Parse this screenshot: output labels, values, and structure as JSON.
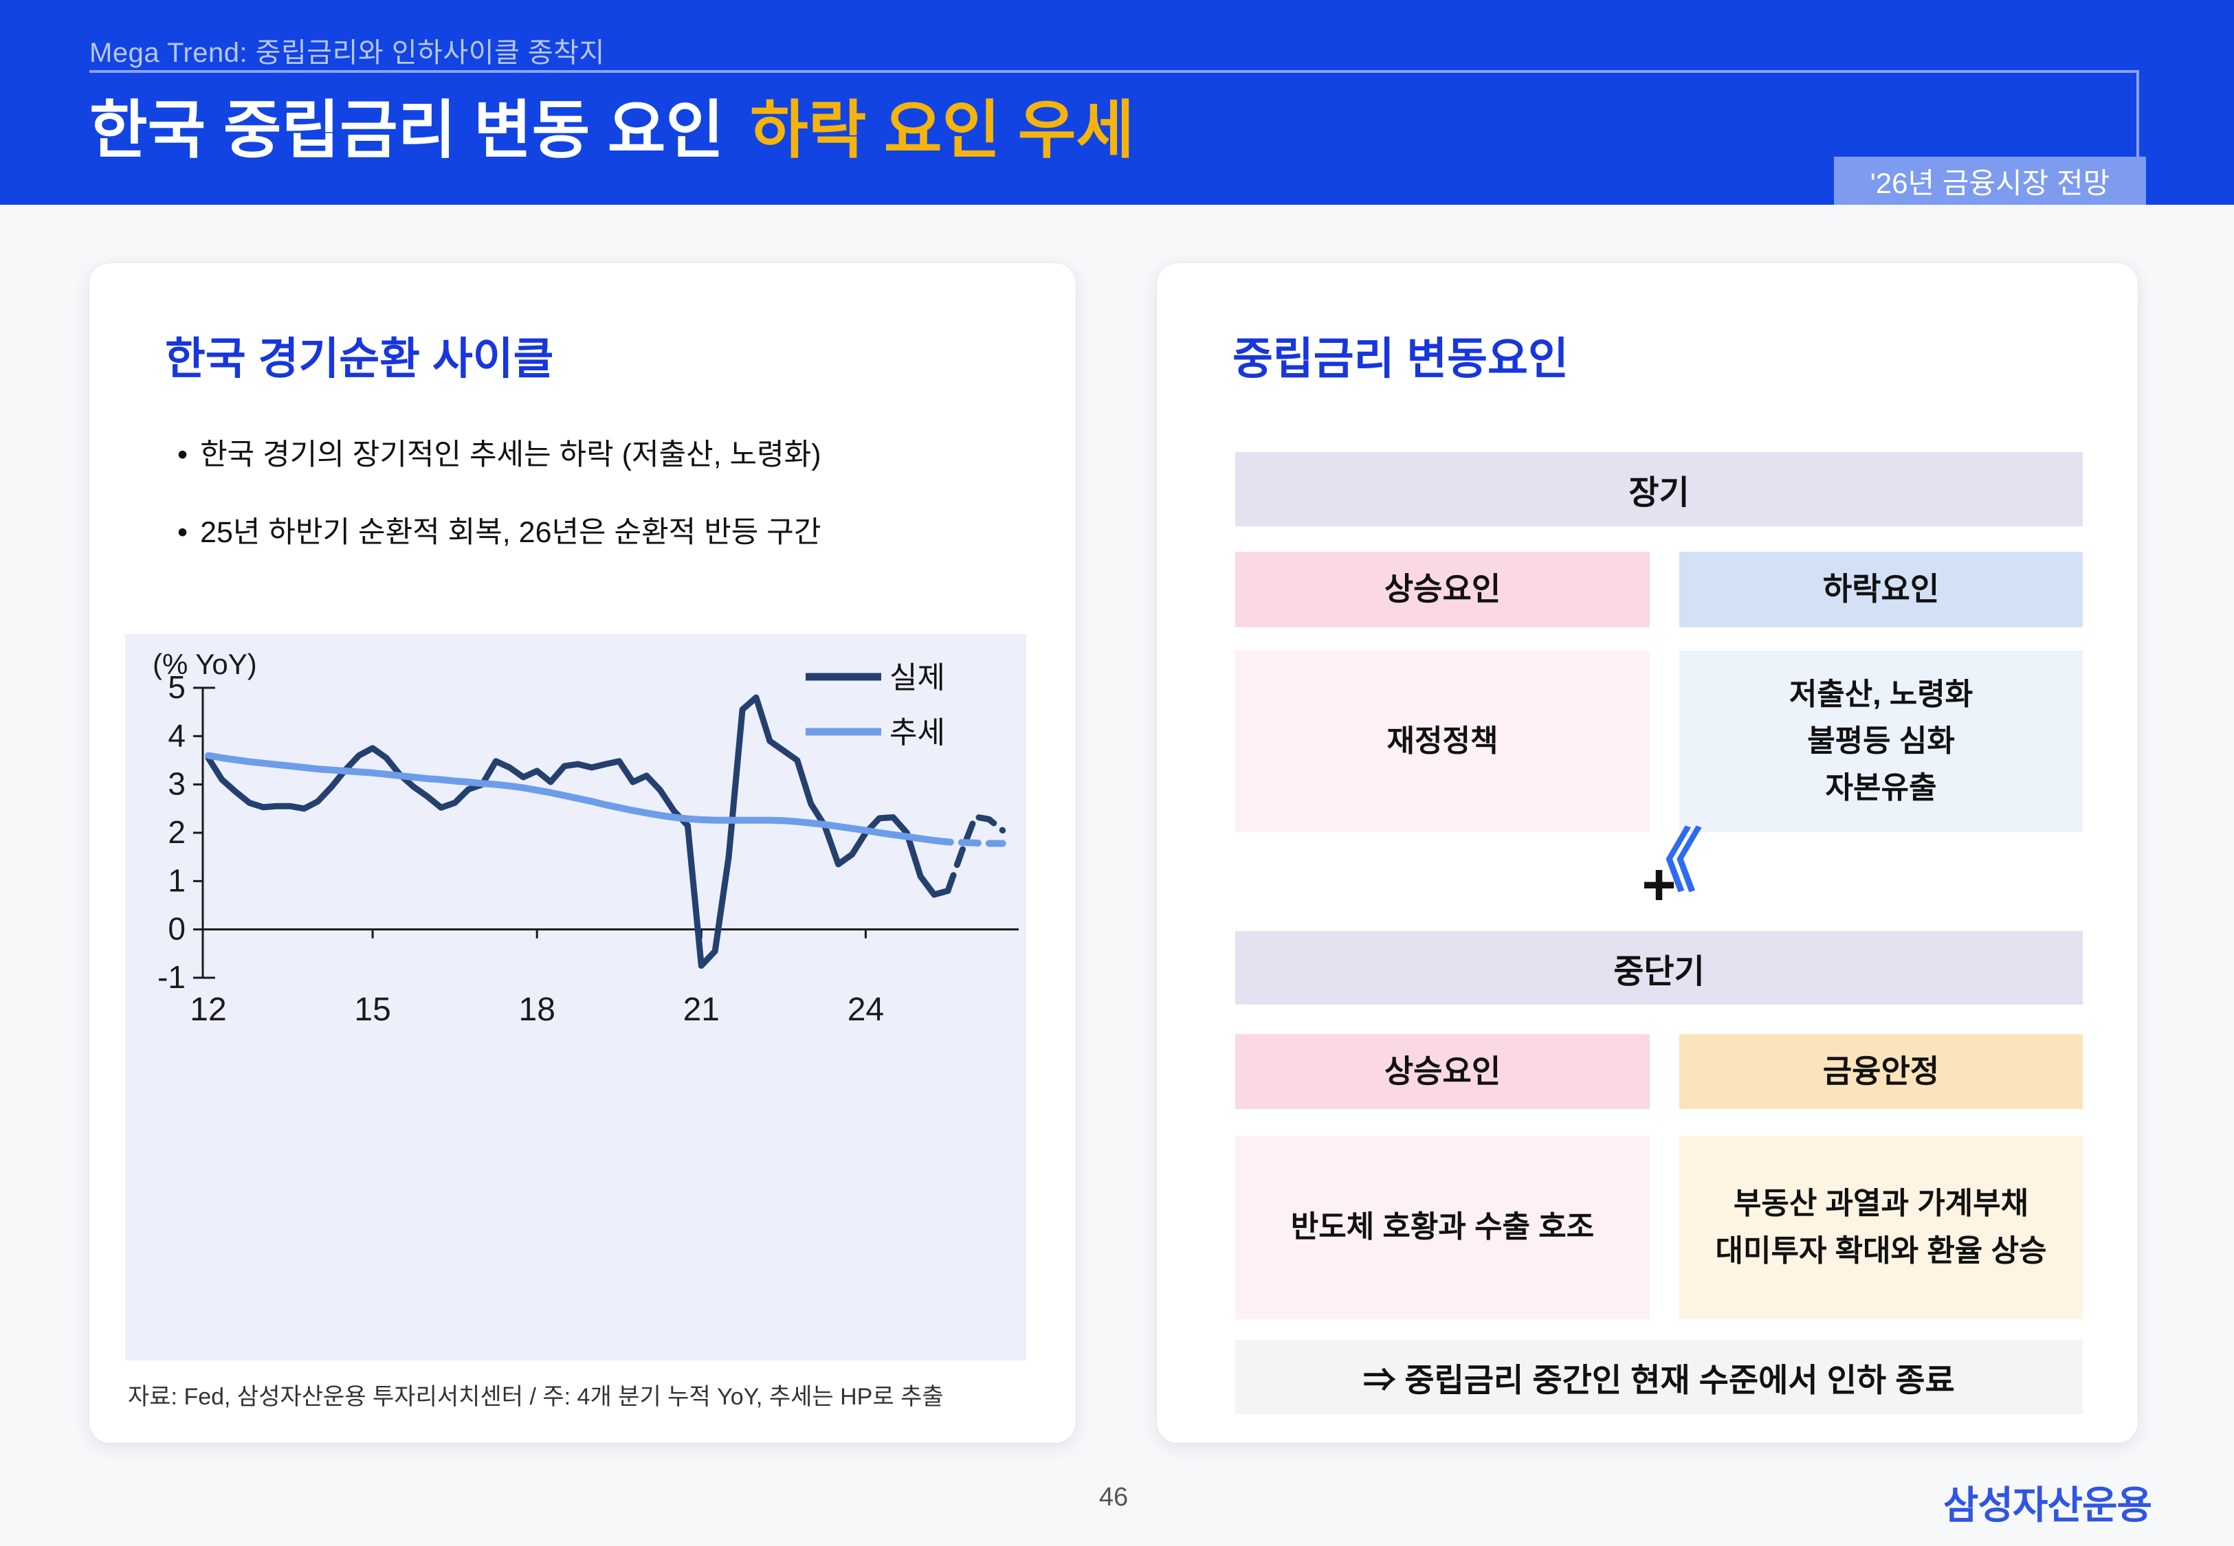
{
  "header": {
    "eyebrow": "Mega Trend: 중립금리와 인하사이클 종착지",
    "title": "한국 중립금리 변동 요인",
    "title_highlight": "하락 요인 우세",
    "badge": "'26년 금융시장 전망"
  },
  "left_card": {
    "title": "한국 경기순환 사이클",
    "bullets": [
      "한국 경기의 장기적인 추세는 하락 (저출산, 노령화)",
      "25년 하반기 순환적 회복, 26년은 순환적 반등 구간"
    ],
    "source": "자료: Fed, 삼성자산운용 투자리서치센터 / 주: 4개 분기 누적 YoY, 추세는 HP로 추출"
  },
  "right_card": {
    "title": "중립금리 변동요인",
    "long_term": {
      "header": "장기",
      "up_label": "상승요인",
      "down_label": "하락요인",
      "comparison_symbol": "《",
      "up_content": "재정정책",
      "down_content": "저출산, 노령화\n불평등 심화\n자본유출"
    },
    "plus_symbol": "+",
    "mid_term": {
      "header": "중단기",
      "up_label": "상승요인",
      "stability_label": "금융안정",
      "up_content": "반도체 호황과 수출 호조",
      "stability_content": "부동산 과열과 가계부채\n대미투자 확대와 환율 상승"
    },
    "conclusion": "⇒ 중립금리 중간인 현재 수준에서 인하 종료"
  },
  "footer": {
    "page_number": "46",
    "logo": "삼성자산운용"
  },
  "colors": {
    "page_bg": "#f7f8fa",
    "header_bg": "#1144e3",
    "header_eyebrow": "#b9c6f4",
    "header_rule": "#8ca3ee",
    "title_text": "#ffffff",
    "title_highlight": "#f6b40a",
    "badge_bg": "#7d9bef",
    "badge_text": "#ffffff",
    "card_bg": "#ffffff",
    "card_title": "#1737dc",
    "body_text": "#111111",
    "chart_bg": "#edf0fa",
    "actual_line": "#24406f",
    "trend_line": "#6d9de9",
    "band_lavender": "#e5e1f1",
    "band_pink": "#fbd9e2",
    "band_blue": "#d3e1f7",
    "cell_pink": "#fdf1f4",
    "cell_blue": "#edf3fb",
    "band_orange": "#fbe3bb",
    "cell_orange": "#fdf4e3",
    "row_gray": "#f4f4f6",
    "guillemet": "#2e6bf0",
    "logo_blue": "#2f55e2",
    "footer_text": "#555555",
    "source_text": "#333333",
    "axis": "#1a1a1a"
  },
  "chart_data": {
    "type": "line",
    "unit_label": "(% YoY)",
    "x_start": 12,
    "x_step": 0.25,
    "x_ticks": [
      12,
      15,
      18,
      21,
      24
    ],
    "xlim": [
      12,
      26.5
    ],
    "ylim": [
      -1,
      5
    ],
    "y_ticks": [
      -1,
      0,
      1,
      2,
      3,
      4,
      5
    ],
    "grid": false,
    "legend_position": "top-right",
    "series": [
      {
        "name": "실제",
        "color": "#24406f",
        "width": 9,
        "dashed_from_index": 54,
        "values": [
          3.55,
          3.1,
          2.85,
          2.62,
          2.53,
          2.55,
          2.55,
          2.5,
          2.65,
          2.95,
          3.3,
          3.6,
          3.75,
          3.55,
          3.2,
          2.95,
          2.75,
          2.52,
          2.62,
          2.9,
          3.0,
          3.48,
          3.35,
          3.15,
          3.28,
          3.05,
          3.38,
          3.42,
          3.35,
          3.42,
          3.48,
          3.05,
          3.18,
          2.88,
          2.45,
          2.15,
          -0.75,
          -0.45,
          1.5,
          4.55,
          4.8,
          3.9,
          3.7,
          3.5,
          2.6,
          2.15,
          1.35,
          1.55,
          2.0,
          2.3,
          2.32,
          2.0,
          1.1,
          0.72,
          0.8,
          1.6,
          2.33,
          2.28,
          2.05
        ]
      },
      {
        "name": "추세",
        "color": "#6d9de9",
        "width": 10,
        "dashed_from_index": 53,
        "values": [
          3.6,
          3.55,
          3.51,
          3.47,
          3.44,
          3.41,
          3.38,
          3.35,
          3.32,
          3.3,
          3.28,
          3.26,
          3.24,
          3.21,
          3.18,
          3.15,
          3.12,
          3.1,
          3.07,
          3.05,
          3.02,
          3.0,
          2.97,
          2.93,
          2.88,
          2.83,
          2.77,
          2.71,
          2.65,
          2.58,
          2.52,
          2.46,
          2.41,
          2.36,
          2.32,
          2.29,
          2.27,
          2.26,
          2.26,
          2.26,
          2.26,
          2.26,
          2.25,
          2.23,
          2.2,
          2.17,
          2.13,
          2.09,
          2.05,
          2.0,
          1.96,
          1.92,
          1.88,
          1.84,
          1.81,
          1.8,
          1.79,
          1.78,
          1.78
        ]
      }
    ]
  }
}
